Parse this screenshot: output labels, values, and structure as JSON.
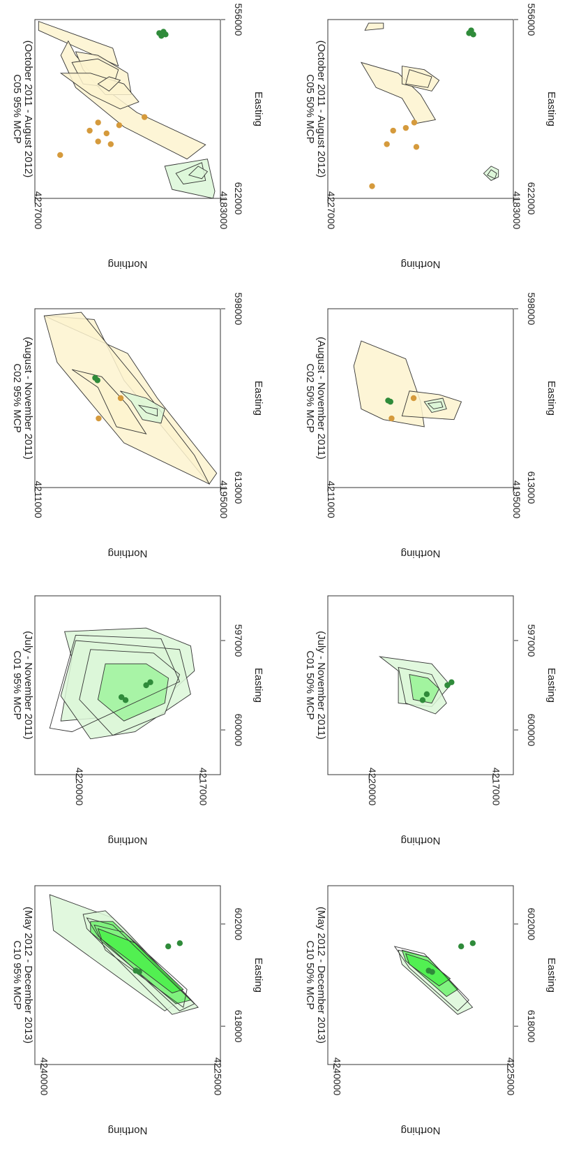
{
  "figure": {
    "description": "Eight panels of home-range polygons, rotated 90 degrees clockwise",
    "colors": {
      "green_fill": "#33ee33",
      "green_light": "#dcf7d8",
      "green_point": "#2f8b3a",
      "tan_fill": "#fdf3cf",
      "tan_point": "#d59a3c",
      "outline": "#333333"
    }
  },
  "chart_data": [
    {
      "type": "scatter",
      "id": "C05-95",
      "title": "C05 95% MCP",
      "subtitle": "(October 2011 - August 2012)",
      "xlabel": "Easting",
      "ylabel": "Northing",
      "xlim": [
        556000,
        622000
      ],
      "ylim": [
        4183000,
        4227000
      ],
      "xticks": [
        "556000",
        "622000"
      ],
      "yticks": [
        "4183000",
        "4227000"
      ],
      "points": [
        {
          "x": 606000,
          "y": 4221000,
          "group": "tan"
        },
        {
          "x": 598000,
          "y": 4210000,
          "group": "tan"
        },
        {
          "x": 597000,
          "y": 4214000,
          "group": "tan"
        },
        {
          "x": 594000,
          "y": 4212000,
          "group": "tan"
        },
        {
          "x": 602000,
          "y": 4209000,
          "group": "tan"
        },
        {
          "x": 601000,
          "y": 4212000,
          "group": "tan"
        },
        {
          "x": 595000,
          "y": 4207000,
          "group": "tan"
        },
        {
          "x": 592000,
          "y": 4201000,
          "group": "tan"
        },
        {
          "x": 562000,
          "y": 4197000,
          "group": "green"
        },
        {
          "x": 561000,
          "y": 4197500,
          "group": "green"
        },
        {
          "x": 560500,
          "y": 4196500,
          "group": "green"
        },
        {
          "x": 561500,
          "y": 4196000,
          "group": "green"
        }
      ]
    },
    {
      "type": "scatter",
      "id": "C02-95",
      "title": "C02 95% MCP",
      "subtitle": "(August - November 2011)",
      "xlabel": "Easting",
      "ylabel": "Northing",
      "xlim": [
        598000,
        613000
      ],
      "ylim": [
        4195000,
        4211000
      ],
      "xticks": [
        "598000",
        "613000"
      ],
      "yticks": [
        "4195000",
        "4211000"
      ],
      "points": [
        {
          "x": 607200,
          "y": 4205500,
          "group": "tan"
        },
        {
          "x": 605500,
          "y": 4203600,
          "group": "tan"
        },
        {
          "x": 603800,
          "y": 4205800,
          "group": "green"
        },
        {
          "x": 604000,
          "y": 4205600,
          "group": "green"
        }
      ]
    },
    {
      "type": "scatter",
      "id": "C01-95",
      "title": "C01 95% MCP",
      "subtitle": "(July - November 2011)",
      "xlabel": "Easting",
      "ylabel": "Northing",
      "xlim": [
        595500,
        601500
      ],
      "ylim": [
        4216500,
        4221000
      ],
      "xticks": [
        "597000",
        "600000"
      ],
      "yticks": [
        "4217000",
        "4220000"
      ],
      "points": [
        {
          "x": 599000,
          "y": 4218800,
          "group": "green"
        },
        {
          "x": 598900,
          "y": 4218900,
          "group": "green"
        },
        {
          "x": 598500,
          "y": 4218300,
          "group": "green"
        },
        {
          "x": 598400,
          "y": 4218200,
          "group": "green"
        }
      ]
    },
    {
      "type": "scatter",
      "id": "C10-95",
      "title": "C10 95% MCP",
      "subtitle": "(May 2012 - December 2013)",
      "xlabel": "Easting",
      "ylabel": "Northing",
      "xlim": [
        596000,
        624000
      ],
      "ylim": [
        4224500,
        4240500
      ],
      "xticks": [
        "602000",
        "618000"
      ],
      "yticks": [
        "4225000",
        "4240000"
      ],
      "points": [
        {
          "x": 609500,
          "y": 4231500,
          "group": "green"
        },
        {
          "x": 609300,
          "y": 4231800,
          "group": "green"
        },
        {
          "x": 605500,
          "y": 4229000,
          "group": "green"
        },
        {
          "x": 605000,
          "y": 4228000,
          "group": "green"
        }
      ]
    },
    {
      "type": "scatter",
      "id": "C05-50",
      "title": "C05 50% MCP",
      "subtitle": "(October 2011 - August 2012)",
      "xlabel": "Easting",
      "ylabel": "Northing",
      "xlim": [
        556000,
        622000
      ],
      "ylim": [
        4183000,
        4227000
      ],
      "xticks": [
        "556000",
        "622000"
      ],
      "yticks": [
        "4183000",
        "4227000"
      ],
      "points": [
        {
          "x": 617500,
          "y": 4216500,
          "group": "tan"
        },
        {
          "x": 602000,
          "y": 4213000,
          "group": "tan"
        },
        {
          "x": 603000,
          "y": 4206000,
          "group": "tan"
        },
        {
          "x": 597000,
          "y": 4211500,
          "group": "tan"
        },
        {
          "x": 596000,
          "y": 4208500,
          "group": "tan"
        },
        {
          "x": 594000,
          "y": 4206500,
          "group": "tan"
        },
        {
          "x": 560000,
          "y": 4193000,
          "group": "green"
        },
        {
          "x": 561000,
          "y": 4193500,
          "group": "green"
        },
        {
          "x": 561500,
          "y": 4192500,
          "group": "green"
        }
      ]
    },
    {
      "type": "scatter",
      "id": "C02-50",
      "title": "C02 50% MCP",
      "subtitle": "(August - November 2011)",
      "xlabel": "Easting",
      "ylabel": "Northing",
      "xlim": [
        598000,
        613000
      ],
      "ylim": [
        4195000,
        4211000
      ],
      "xticks": [
        "598000",
        "613000"
      ],
      "yticks": [
        "4195000",
        "4211000"
      ],
      "points": [
        {
          "x": 607200,
          "y": 4205500,
          "group": "tan"
        },
        {
          "x": 605500,
          "y": 4203600,
          "group": "tan"
        },
        {
          "x": 605700,
          "y": 4205800,
          "group": "green"
        },
        {
          "x": 605800,
          "y": 4205600,
          "group": "green"
        }
      ]
    },
    {
      "type": "scatter",
      "id": "C01-50",
      "title": "C01 50% MCP",
      "subtitle": "(July - November 2011)",
      "xlabel": "Easting",
      "ylabel": "Northing",
      "xlim": [
        595500,
        601500
      ],
      "ylim": [
        4216500,
        4221000
      ],
      "xticks": [
        "597000",
        "600000"
      ],
      "yticks": [
        "4217000",
        "4220000"
      ],
      "points": [
        {
          "x": 599000,
          "y": 4218700,
          "group": "green"
        },
        {
          "x": 598800,
          "y": 4218600,
          "group": "green"
        },
        {
          "x": 598500,
          "y": 4218100,
          "group": "green"
        },
        {
          "x": 598400,
          "y": 4218000,
          "group": "green"
        }
      ]
    },
    {
      "type": "scatter",
      "id": "C10-50",
      "title": "C10 50% MCP",
      "subtitle": "(May 2012 - December 2013)",
      "xlabel": "Easting",
      "ylabel": "Northing",
      "xlim": [
        596000,
        624000
      ],
      "ylim": [
        4224500,
        4240500
      ],
      "xticks": [
        "602000",
        "618000"
      ],
      "yticks": [
        "4225000",
        "4240000"
      ],
      "points": [
        {
          "x": 609500,
          "y": 4231500,
          "group": "green"
        },
        {
          "x": 609300,
          "y": 4231800,
          "group": "green"
        },
        {
          "x": 605500,
          "y": 4229000,
          "group": "green"
        },
        {
          "x": 605000,
          "y": 4228000,
          "group": "green"
        }
      ]
    }
  ]
}
